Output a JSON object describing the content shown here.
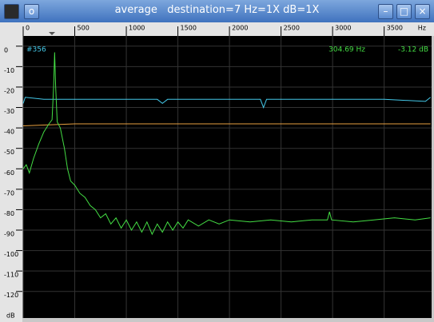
{
  "window": {
    "title": "average   destination=7 Hz=1X dB=1X",
    "menu_button": "o"
  },
  "readout": {
    "index": "#356",
    "frequency": "304.69 Hz",
    "level": "-3.12 dB"
  },
  "chart_data": {
    "type": "line",
    "x_unit": "Hz",
    "y_unit": "dB",
    "xlim": [
      0,
      3960
    ],
    "ylim": [
      -133,
      5
    ],
    "xticks": [
      0,
      500,
      1000,
      1500,
      2000,
      2500,
      3000,
      3500
    ],
    "yticks": [
      0,
      -10,
      -20,
      -30,
      -40,
      -50,
      -60,
      -70,
      -80,
      -90,
      -100,
      -110,
      -120
    ],
    "grid": true,
    "series": [
      {
        "color": "#44c8e8",
        "x": [
          0,
          20,
          200,
          500,
          1000,
          1300,
          1350,
          1400,
          2000,
          2300,
          2330,
          2360,
          2800,
          3500,
          3900,
          3950
        ],
        "values": [
          -28,
          -25,
          -26,
          -26,
          -26,
          -26,
          -28,
          -26,
          -26,
          -26,
          -30,
          -26,
          -26,
          -26,
          -27,
          -25
        ]
      },
      {
        "color": "#e8a040",
        "x": [
          0,
          500,
          1000,
          2000,
          3000,
          3950
        ],
        "values": [
          -39,
          -38,
          -38,
          -38,
          -38,
          -38
        ]
      },
      {
        "color": "#44dd44",
        "x": [
          0,
          30,
          60,
          100,
          150,
          200,
          250,
          280,
          295,
          305,
          315,
          330,
          360,
          400,
          430,
          460,
          500,
          550,
          600,
          650,
          700,
          750,
          800,
          850,
          900,
          950,
          1000,
          1050,
          1100,
          1150,
          1200,
          1250,
          1300,
          1350,
          1400,
          1450,
          1500,
          1550,
          1600,
          1700,
          1800,
          1900,
          2000,
          2200,
          2400,
          2600,
          2800,
          2950,
          2970,
          2990,
          3200,
          3400,
          3600,
          3800,
          3950
        ],
        "values": [
          -60,
          -58,
          -62,
          -55,
          -48,
          -42,
          -38,
          -36,
          -20,
          -3,
          -20,
          -37,
          -40,
          -50,
          -60,
          -66,
          -68,
          -72,
          -74,
          -78,
          -80,
          -84,
          -82,
          -87,
          -84,
          -89,
          -85,
          -90,
          -86,
          -91,
          -86,
          -92,
          -87,
          -91,
          -86,
          -90,
          -86,
          -89,
          -85,
          -88,
          -85,
          -87,
          -85,
          -86,
          -85,
          -86,
          -85,
          -85,
          -81,
          -85,
          -86,
          -85,
          -84,
          -85,
          -84
        ]
      }
    ]
  }
}
